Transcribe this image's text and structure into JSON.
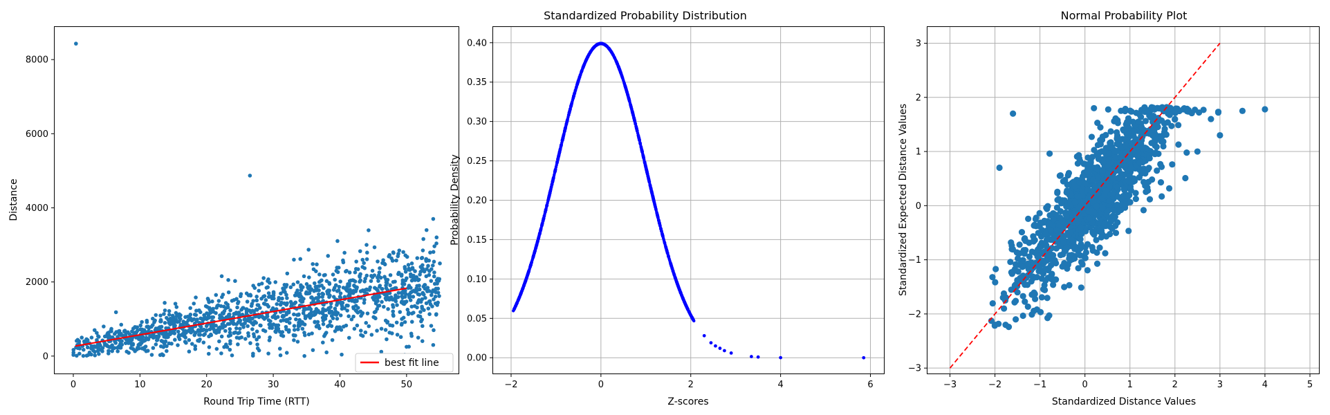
{
  "colors": {
    "scatter": "#1f77b4",
    "pdf_points": "#0000ff",
    "fit_line": "#ff0000",
    "grid": "#b0b0b0",
    "axes": "#000000"
  },
  "chart_data": [
    {
      "type": "scatter",
      "title": "",
      "xlabel": "Round Trip Time (RTT)",
      "ylabel": "Distance",
      "xlim": [
        -2.8,
        57.8
      ],
      "ylim": [
        -470,
        8880
      ],
      "xticks": [
        0,
        10,
        20,
        30,
        40,
        50
      ],
      "yticks": [
        0,
        2000,
        4000,
        6000,
        8000
      ],
      "grid": false,
      "legend": {
        "placement": "lower-right",
        "entries": [
          {
            "label": "best fit line",
            "color": "#ff0000"
          }
        ]
      },
      "fit_line": {
        "x": [
          0.3,
          50
        ],
        "y": [
          270,
          1830
        ]
      },
      "outliers": [
        {
          "x": 0.4,
          "y": 8430
        },
        {
          "x": 26.5,
          "y": 4870
        }
      ],
      "scatter_summary": "dense cloud, approx 1500 points between RTT 0 and 55",
      "sample_points": [
        [
          0.5,
          10
        ],
        [
          1.5,
          5
        ],
        [
          2,
          400
        ],
        [
          3,
          150
        ],
        [
          5,
          300
        ],
        [
          7,
          450
        ],
        [
          9,
          550
        ],
        [
          10,
          500
        ],
        [
          12,
          600
        ],
        [
          14,
          700
        ],
        [
          15,
          650
        ],
        [
          17,
          900
        ],
        [
          19,
          850
        ],
        [
          20,
          1000
        ],
        [
          22,
          1100
        ],
        [
          24,
          1050
        ],
        [
          26,
          1200
        ],
        [
          28,
          1300
        ],
        [
          30,
          1250
        ],
        [
          32,
          1400
        ],
        [
          34,
          1350
        ],
        [
          36,
          1500
        ],
        [
          38,
          1450
        ],
        [
          40,
          1600
        ],
        [
          42,
          1700
        ],
        [
          44,
          1800
        ],
        [
          46,
          1900
        ],
        [
          48,
          2000
        ],
        [
          50,
          2100
        ],
        [
          52,
          2200
        ],
        [
          54,
          3700
        ],
        [
          53,
          3400
        ],
        [
          44,
          3000
        ],
        [
          48,
          2800
        ],
        [
          55,
          2500
        ],
        [
          41,
          2300
        ],
        [
          27,
          1900
        ],
        [
          31,
          200
        ],
        [
          38,
          100
        ],
        [
          50,
          250
        ],
        [
          54,
          300
        ]
      ]
    },
    {
      "type": "scatter",
      "title": "Standardized Probability Distribution",
      "xlabel": "Z-scores",
      "ylabel": "Probability Density",
      "xlim": [
        -2.4,
        6.3
      ],
      "ylim": [
        -0.02,
        0.42
      ],
      "xticks": [
        -2,
        0,
        2,
        4,
        6
      ],
      "yticks": [
        0.0,
        0.05,
        0.1,
        0.15,
        0.2,
        0.25,
        0.3,
        0.35,
        0.4
      ],
      "ytick_labels": [
        "0.00",
        "0.05",
        "0.10",
        "0.15",
        "0.20",
        "0.25",
        "0.30",
        "0.35",
        "0.40"
      ],
      "grid": true,
      "curve": "standard normal pdf evaluated at z in [-1.95, 2.08]",
      "z_range": [
        -1.95,
        2.08
      ],
      "tail_points": [
        [
          2.3,
          0.028
        ],
        [
          2.45,
          0.019
        ],
        [
          2.55,
          0.015
        ],
        [
          2.65,
          0.012
        ],
        [
          2.75,
          0.009
        ],
        [
          2.9,
          0.006
        ],
        [
          3.35,
          0.0015
        ],
        [
          3.5,
          0.0009
        ],
        [
          4.0,
          0.0001
        ],
        [
          5.85,
          0.0
        ]
      ]
    },
    {
      "type": "scatter",
      "title": "Normal Probability Plot",
      "xlabel": "Standardized Distance Values",
      "ylabel": "Standardized Expected Distance Values",
      "xlim": [
        -3.5,
        5.2
      ],
      "ylim": [
        -3.1,
        3.3
      ],
      "xticks": [
        -3,
        -2,
        -1,
        0,
        1,
        2,
        3,
        4,
        5
      ],
      "yticks": [
        -3,
        -2,
        -1,
        0,
        1,
        2,
        3
      ],
      "tick_labels_minus": "−",
      "grid": true,
      "reference_line": {
        "x": [
          -3,
          3
        ],
        "y": [
          -3,
          3
        ],
        "style": "dashed",
        "color": "#ff0000"
      },
      "sample_points": [
        [
          -2,
          -2.2
        ],
        [
          -1.8,
          -1.9
        ],
        [
          -1.5,
          -1.6
        ],
        [
          -1.2,
          -1.2
        ],
        [
          -1,
          -1.0
        ],
        [
          -0.5,
          -0.6
        ],
        [
          0,
          0
        ],
        [
          0.5,
          0.5
        ],
        [
          1,
          0.9
        ],
        [
          1.5,
          1.3
        ],
        [
          2,
          1.6
        ],
        [
          2.5,
          1.0
        ],
        [
          3,
          1.3
        ],
        [
          3.5,
          1.75
        ],
        [
          4,
          1.78
        ],
        [
          -1.9,
          0.7
        ],
        [
          -1.6,
          1.7
        ],
        [
          0.2,
          1.8
        ],
        [
          2.8,
          1.6
        ]
      ]
    }
  ]
}
